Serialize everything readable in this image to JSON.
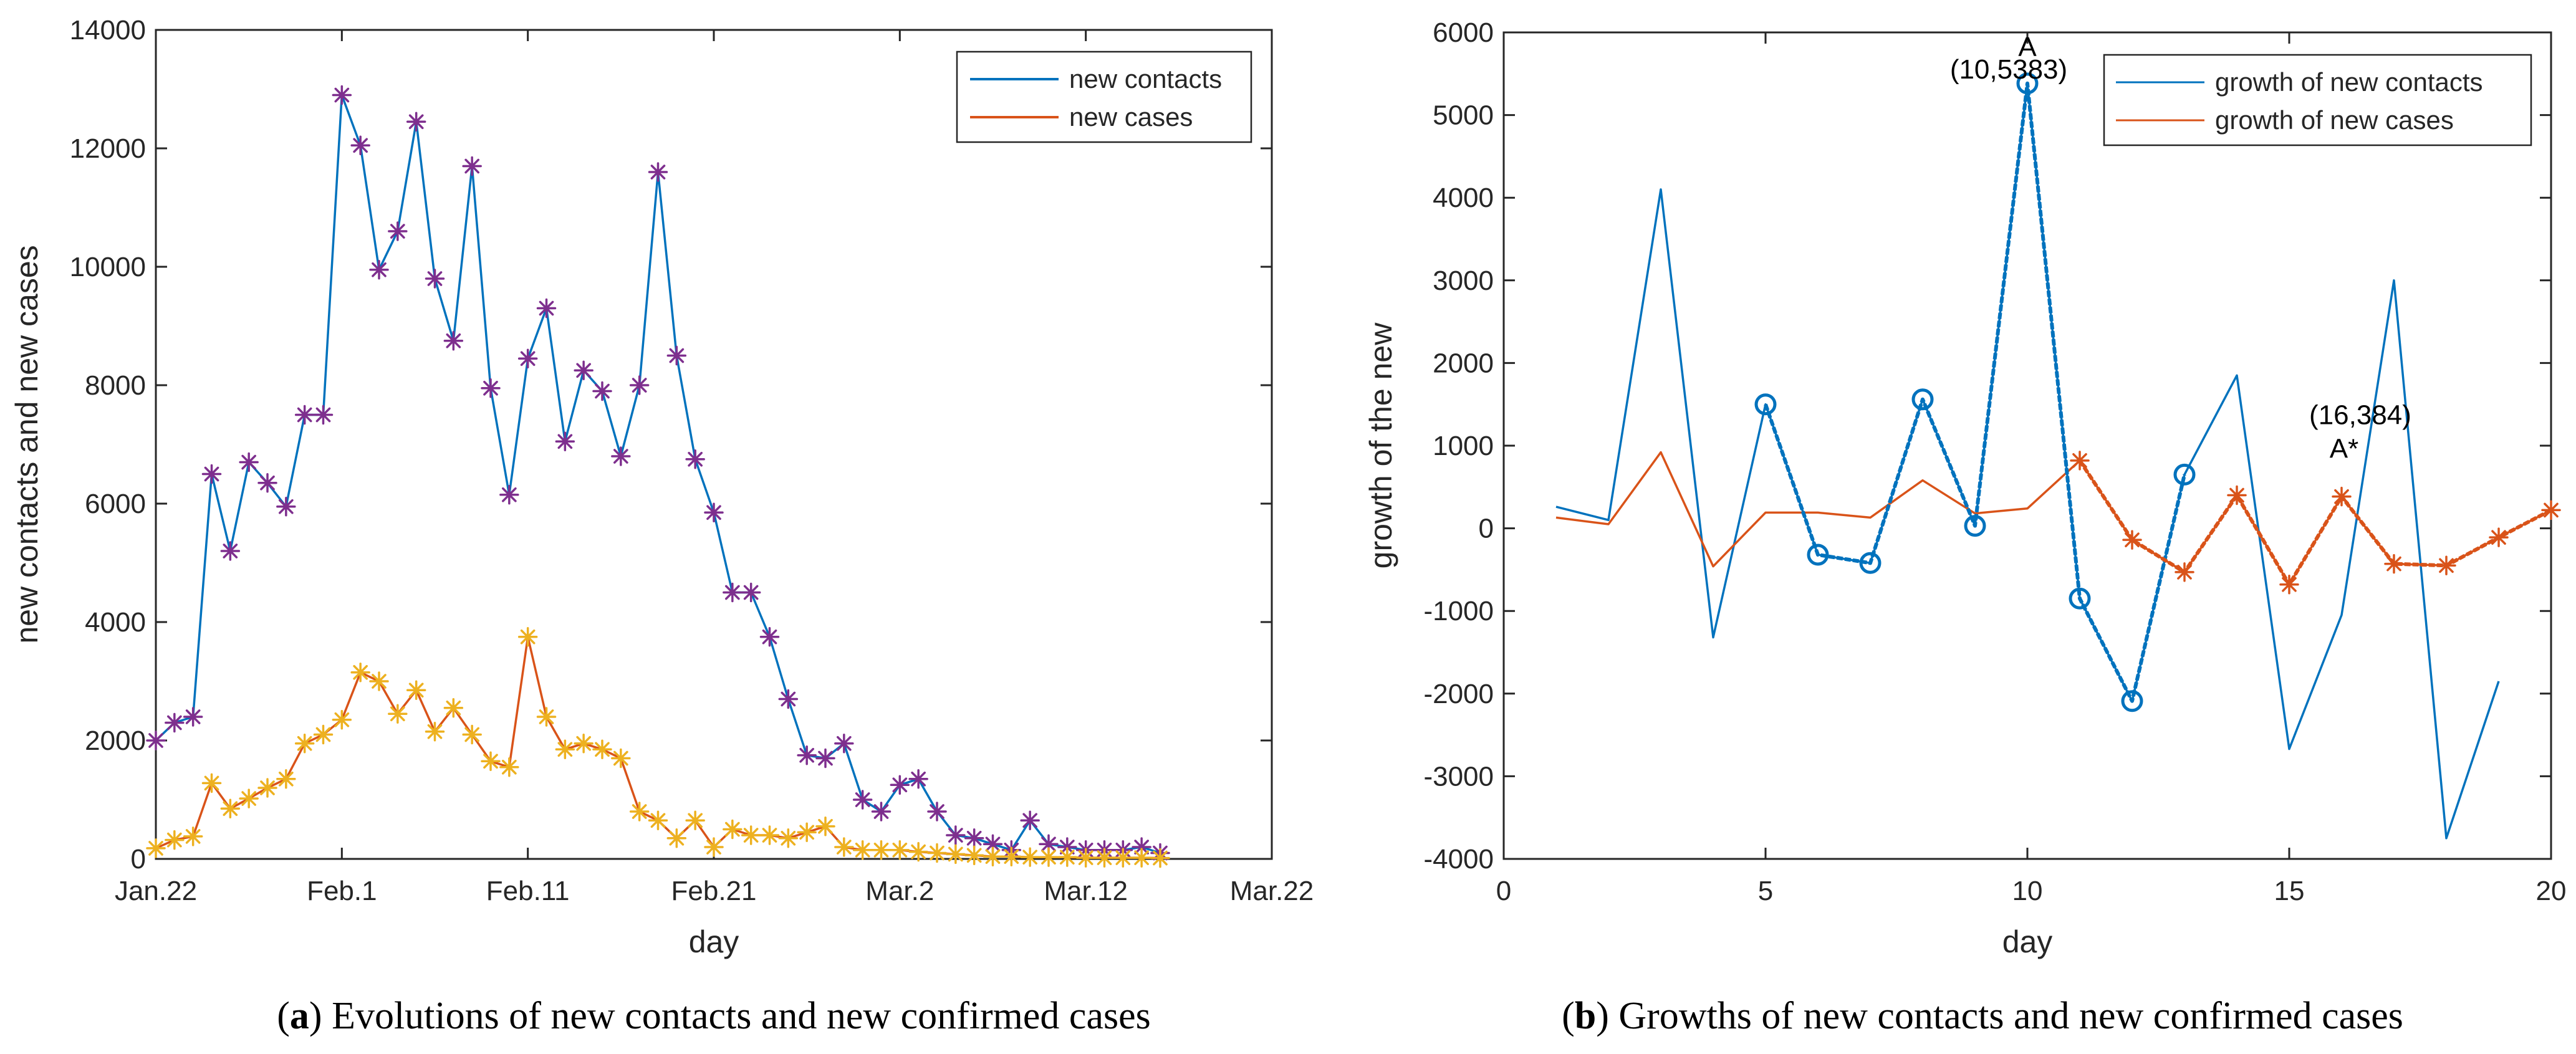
{
  "colors": {
    "contacts": "#0072BD",
    "cases": "#D95319",
    "contacts_marker": "#7E2F8E",
    "cases_marker": "#EDB120",
    "axis": "#262626"
  },
  "captions": [
    {
      "letter": "a",
      "text": "Evolutions of new contacts and new confirmed cases"
    },
    {
      "letter": "b",
      "text": "Growths of new contacts and new confirmed cases"
    }
  ],
  "chart_data": [
    {
      "type": "line",
      "title": "",
      "xlabel": "day",
      "ylabel": "new contacts and new cases",
      "xlim": [
        0,
        60
      ],
      "ylim": [
        0,
        14000
      ],
      "xticks": [
        {
          "x": 0,
          "label": "Jan.22"
        },
        {
          "x": 10,
          "label": "Feb.1"
        },
        {
          "x": 20,
          "label": "Feb.11"
        },
        {
          "x": 30,
          "label": "Feb.21"
        },
        {
          "x": 40,
          "label": "Mar.2"
        },
        {
          "x": 50,
          "label": "Mar.12"
        },
        {
          "x": 60,
          "label": "Mar.22"
        }
      ],
      "yticks": [
        0,
        2000,
        4000,
        6000,
        8000,
        10000,
        12000,
        14000
      ],
      "legend_position": "top-right",
      "series": [
        {
          "name": "new contacts",
          "x": [
            0,
            1,
            2,
            3,
            4,
            5,
            6,
            7,
            8,
            9,
            10,
            11,
            12,
            13,
            14,
            15,
            16,
            17,
            18,
            19,
            20,
            21,
            22,
            23,
            24,
            25,
            26,
            27,
            28,
            29,
            30,
            31,
            32,
            33,
            34,
            35,
            36,
            37,
            38,
            39,
            40,
            41,
            42,
            43,
            44,
            45,
            46,
            47,
            48,
            49,
            50,
            51,
            52,
            53,
            54
          ],
          "values": [
            2000,
            2300,
            2400,
            6500,
            5200,
            6700,
            6350,
            5950,
            7500,
            7500,
            12900,
            12050,
            9950,
            10600,
            12450,
            9800,
            8750,
            11700,
            7950,
            6150,
            8450,
            9300,
            7050,
            8250,
            7900,
            6800,
            8000,
            11600,
            8500,
            6750,
            5850,
            4500,
            4500,
            3750,
            2700,
            1750,
            1700,
            1950,
            1000,
            800,
            1250,
            1350,
            800,
            400,
            350,
            250,
            150,
            650,
            250,
            200,
            150,
            150,
            150,
            200,
            100
          ]
        },
        {
          "name": "new cases",
          "x": [
            0,
            1,
            2,
            3,
            4,
            5,
            6,
            7,
            8,
            9,
            10,
            11,
            12,
            13,
            14,
            15,
            16,
            17,
            18,
            19,
            20,
            21,
            22,
            23,
            24,
            25,
            26,
            27,
            28,
            29,
            30,
            31,
            32,
            33,
            34,
            35,
            36,
            37,
            38,
            39,
            40,
            41,
            42,
            43,
            44,
            45,
            46,
            47,
            48,
            49,
            50,
            51,
            52,
            53,
            54
          ],
          "values": [
            180,
            320,
            380,
            1280,
            850,
            1020,
            1200,
            1350,
            1950,
            2100,
            2350,
            3150,
            3000,
            2450,
            2850,
            2150,
            2550,
            2100,
            1650,
            1550,
            3750,
            2400,
            1850,
            1950,
            1850,
            1700,
            800,
            650,
            350,
            650,
            200,
            500,
            400,
            400,
            350,
            450,
            550,
            200,
            150,
            150,
            150,
            120,
            100,
            80,
            60,
            40,
            40,
            30,
            30,
            30,
            20,
            20,
            20,
            20,
            15
          ]
        }
      ]
    },
    {
      "type": "line",
      "title": "",
      "xlabel": "day",
      "ylabel": "growth of the new",
      "xlim": [
        0,
        20
      ],
      "ylim": [
        -4000,
        6000
      ],
      "xticks": [
        {
          "x": 0,
          "label": "0"
        },
        {
          "x": 5,
          "label": "5"
        },
        {
          "x": 10,
          "label": "10"
        },
        {
          "x": 15,
          "label": "15"
        },
        {
          "x": 20,
          "label": "20"
        }
      ],
      "yticks": [
        -4000,
        -3000,
        -2000,
        -1000,
        0,
        1000,
        2000,
        3000,
        4000,
        5000,
        6000
      ],
      "legend_position": "top-right",
      "series": [
        {
          "name": "growth of new contacts",
          "x": [
            1,
            2,
            3,
            4,
            5,
            6,
            7,
            8,
            9,
            10,
            11,
            12,
            13,
            14,
            15,
            16,
            17,
            18,
            19
          ],
          "values": [
            260,
            100,
            4100,
            -1320,
            1500,
            -320,
            -420,
            1560,
            30,
            5383,
            -850,
            -2090,
            650,
            1850,
            -2670,
            -1050,
            3000,
            -3750,
            -1850
          ]
        },
        {
          "name": "growth of new cases",
          "x": [
            1,
            2,
            3,
            4,
            5,
            6,
            7,
            8,
            9,
            10,
            11,
            12,
            13,
            14,
            15,
            16,
            17,
            18,
            19,
            20
          ],
          "values": [
            130,
            50,
            920,
            -460,
            190,
            190,
            130,
            580,
            180,
            240,
            820,
            -140,
            -530,
            400,
            -680,
            384,
            -430,
            -450,
            -110,
            220
          ]
        }
      ],
      "highlight_contacts": {
        "x": [
          5,
          6,
          7,
          8,
          9,
          10,
          11,
          12,
          13
        ],
        "values": [
          1500,
          -320,
          -420,
          1560,
          30,
          5383,
          -850,
          -2090,
          650
        ]
      },
      "highlight_cases": {
        "x": [
          11,
          12,
          13,
          14,
          15,
          16,
          17,
          18,
          19,
          20
        ],
        "values": [
          820,
          -140,
          -530,
          400,
          -680,
          384,
          -430,
          -450,
          -110,
          220
        ]
      },
      "annotations": [
        {
          "x": 10,
          "y": 5383,
          "label": "A",
          "coord_label": "(10,5383)"
        },
        {
          "x": 16,
          "y": 384,
          "label": "A*",
          "coord_label": "(16,384)"
        }
      ]
    }
  ]
}
